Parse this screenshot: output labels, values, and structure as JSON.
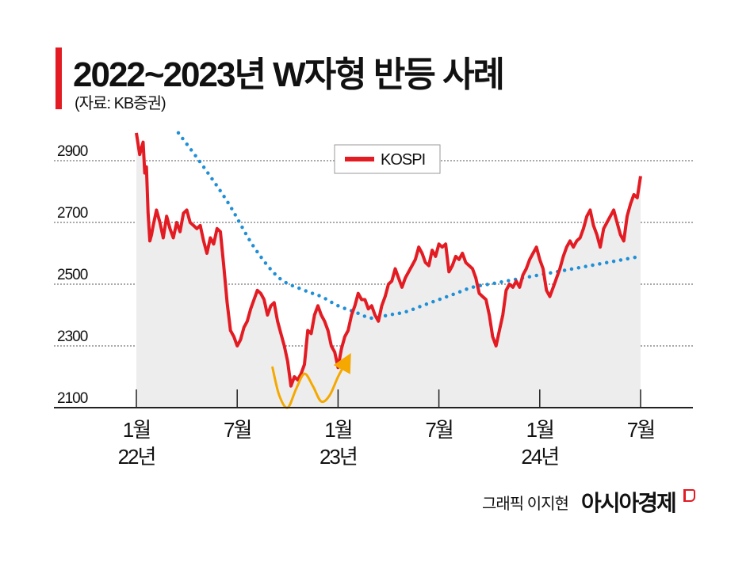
{
  "header": {
    "title": "2022~2023년 W자형 반등 사례",
    "source": "(자료: KB증권)"
  },
  "footer": {
    "credit": "그래픽 이지현",
    "brand": "아시아경제"
  },
  "colors": {
    "accent": "#e31b23",
    "kospi_line": "#e31b23",
    "dotted_trend": "#1f8fd6",
    "w_pattern": "#f5a800",
    "area_fill": "#ededed",
    "grid": "#555555"
  },
  "chart_data": {
    "type": "line",
    "title": "2022~2023년 W자형 반등 사례",
    "legend": {
      "labels": [
        "KOSPI"
      ],
      "placement": "top-center"
    },
    "y_ticks": [
      "2900",
      "2700",
      "2500",
      "2300",
      "2100"
    ],
    "ylim": [
      2100,
      2900
    ],
    "grid": true,
    "x_ticks": [
      {
        "month": "1월",
        "year": "22년",
        "t": 0
      },
      {
        "month": "7월",
        "year": "",
        "t": 6
      },
      {
        "month": "1월",
        "year": "23년",
        "t": 12
      },
      {
        "month": "7월",
        "year": "",
        "t": 18
      },
      {
        "month": "1월",
        "year": "24년",
        "t": 24
      },
      {
        "month": "7월",
        "year": "",
        "t": 30
      }
    ],
    "x_unit": "months since January 2022",
    "series": [
      {
        "name": "KOSPI",
        "style": "solid-area",
        "values": [
          [
            0.0,
            2990
          ],
          [
            0.2,
            2920
          ],
          [
            0.4,
            2960
          ],
          [
            0.5,
            2860
          ],
          [
            0.6,
            2880
          ],
          [
            0.7,
            2730
          ],
          [
            0.8,
            2640
          ],
          [
            0.9,
            2660
          ],
          [
            1.0,
            2690
          ],
          [
            1.2,
            2740
          ],
          [
            1.4,
            2700
          ],
          [
            1.6,
            2650
          ],
          [
            1.8,
            2720
          ],
          [
            2.0,
            2680
          ],
          [
            2.2,
            2650
          ],
          [
            2.4,
            2700
          ],
          [
            2.6,
            2670
          ],
          [
            2.8,
            2730
          ],
          [
            3.0,
            2740
          ],
          [
            3.2,
            2700
          ],
          [
            3.4,
            2690
          ],
          [
            3.6,
            2680
          ],
          [
            3.8,
            2690
          ],
          [
            4.0,
            2640
          ],
          [
            4.2,
            2600
          ],
          [
            4.4,
            2650
          ],
          [
            4.6,
            2630
          ],
          [
            4.8,
            2680
          ],
          [
            5.0,
            2670
          ],
          [
            5.2,
            2560
          ],
          [
            5.4,
            2440
          ],
          [
            5.6,
            2350
          ],
          [
            5.8,
            2330
          ],
          [
            6.0,
            2300
          ],
          [
            6.2,
            2320
          ],
          [
            6.4,
            2360
          ],
          [
            6.6,
            2380
          ],
          [
            6.8,
            2420
          ],
          [
            7.0,
            2450
          ],
          [
            7.2,
            2480
          ],
          [
            7.4,
            2470
          ],
          [
            7.6,
            2450
          ],
          [
            7.8,
            2400
          ],
          [
            8.0,
            2430
          ],
          [
            8.2,
            2440
          ],
          [
            8.4,
            2380
          ],
          [
            8.6,
            2340
          ],
          [
            8.8,
            2300
          ],
          [
            9.0,
            2250
          ],
          [
            9.2,
            2170
          ],
          [
            9.4,
            2200
          ],
          [
            9.6,
            2190
          ],
          [
            9.8,
            2210
          ],
          [
            10.0,
            2240
          ],
          [
            10.2,
            2350
          ],
          [
            10.4,
            2340
          ],
          [
            10.6,
            2400
          ],
          [
            10.8,
            2430
          ],
          [
            11.0,
            2400
          ],
          [
            11.2,
            2380
          ],
          [
            11.4,
            2350
          ],
          [
            11.6,
            2300
          ],
          [
            11.8,
            2280
          ],
          [
            12.0,
            2230
          ],
          [
            12.2,
            2290
          ],
          [
            12.4,
            2330
          ],
          [
            12.6,
            2350
          ],
          [
            12.8,
            2400
          ],
          [
            13.0,
            2430
          ],
          [
            13.2,
            2470
          ],
          [
            13.4,
            2450
          ],
          [
            13.6,
            2450
          ],
          [
            13.8,
            2420
          ],
          [
            14.0,
            2430
          ],
          [
            14.2,
            2400
          ],
          [
            14.4,
            2380
          ],
          [
            14.6,
            2430
          ],
          [
            14.8,
            2460
          ],
          [
            15.0,
            2500
          ],
          [
            15.2,
            2510
          ],
          [
            15.4,
            2550
          ],
          [
            15.6,
            2520
          ],
          [
            15.8,
            2490
          ],
          [
            16.0,
            2520
          ],
          [
            16.2,
            2540
          ],
          [
            16.4,
            2560
          ],
          [
            16.6,
            2580
          ],
          [
            16.8,
            2620
          ],
          [
            17.0,
            2600
          ],
          [
            17.2,
            2570
          ],
          [
            17.4,
            2560
          ],
          [
            17.6,
            2610
          ],
          [
            17.8,
            2590
          ],
          [
            18.0,
            2630
          ],
          [
            18.2,
            2620
          ],
          [
            18.4,
            2630
          ],
          [
            18.6,
            2540
          ],
          [
            18.8,
            2560
          ],
          [
            19.0,
            2590
          ],
          [
            19.2,
            2580
          ],
          [
            19.4,
            2600
          ],
          [
            19.6,
            2570
          ],
          [
            19.8,
            2560
          ],
          [
            20.0,
            2550
          ],
          [
            20.2,
            2520
          ],
          [
            20.4,
            2470
          ],
          [
            20.6,
            2460
          ],
          [
            20.8,
            2450
          ],
          [
            21.0,
            2400
          ],
          [
            21.2,
            2330
          ],
          [
            21.4,
            2300
          ],
          [
            21.6,
            2350
          ],
          [
            21.8,
            2400
          ],
          [
            22.0,
            2480
          ],
          [
            22.2,
            2500
          ],
          [
            22.4,
            2490
          ],
          [
            22.6,
            2510
          ],
          [
            22.8,
            2490
          ],
          [
            23.0,
            2530
          ],
          [
            23.2,
            2550
          ],
          [
            23.4,
            2580
          ],
          [
            23.6,
            2600
          ],
          [
            23.8,
            2620
          ],
          [
            24.0,
            2580
          ],
          [
            24.2,
            2550
          ],
          [
            24.4,
            2480
          ],
          [
            24.6,
            2460
          ],
          [
            24.8,
            2490
          ],
          [
            25.0,
            2520
          ],
          [
            25.2,
            2550
          ],
          [
            25.4,
            2590
          ],
          [
            25.6,
            2620
          ],
          [
            25.8,
            2640
          ],
          [
            26.0,
            2620
          ],
          [
            26.2,
            2640
          ],
          [
            26.4,
            2650
          ],
          [
            26.6,
            2680
          ],
          [
            26.8,
            2720
          ],
          [
            27.0,
            2740
          ],
          [
            27.2,
            2690
          ],
          [
            27.4,
            2660
          ],
          [
            27.6,
            2620
          ],
          [
            27.8,
            2680
          ],
          [
            28.0,
            2700
          ],
          [
            28.2,
            2720
          ],
          [
            28.4,
            2740
          ],
          [
            28.6,
            2700
          ],
          [
            28.8,
            2660
          ],
          [
            29.0,
            2640
          ],
          [
            29.2,
            2720
          ],
          [
            29.4,
            2760
          ],
          [
            29.6,
            2790
          ],
          [
            29.8,
            2780
          ],
          [
            30.0,
            2850
          ]
        ]
      },
      {
        "name": "",
        "style": "dotted-trend",
        "values": [
          [
            2.5,
            2990
          ],
          [
            4.0,
            2880
          ],
          [
            5.5,
            2760
          ],
          [
            7.0,
            2620
          ],
          [
            8.5,
            2520
          ],
          [
            10.0,
            2480
          ],
          [
            11.0,
            2460
          ],
          [
            12.0,
            2430
          ],
          [
            13.0,
            2410
          ],
          [
            14.0,
            2390
          ],
          [
            15.0,
            2400
          ],
          [
            16.0,
            2410
          ],
          [
            17.0,
            2430
          ],
          [
            18.0,
            2450
          ],
          [
            19.0,
            2470
          ],
          [
            20.0,
            2490
          ],
          [
            21.0,
            2500
          ],
          [
            22.0,
            2510
          ],
          [
            23.0,
            2520
          ],
          [
            24.0,
            2530
          ],
          [
            25.0,
            2540
          ],
          [
            26.0,
            2550
          ],
          [
            27.0,
            2560
          ],
          [
            28.0,
            2570
          ],
          [
            29.0,
            2580
          ],
          [
            30.0,
            2590
          ]
        ]
      },
      {
        "name": "",
        "style": "w-pattern-arrow",
        "values": [
          [
            8.1,
            2230
          ],
          [
            8.5,
            2140
          ],
          [
            9.0,
            2100
          ],
          [
            9.5,
            2160
          ],
          [
            10.0,
            2210
          ],
          [
            10.5,
            2170
          ],
          [
            11.0,
            2120
          ],
          [
            11.5,
            2140
          ],
          [
            12.0,
            2200
          ],
          [
            12.5,
            2250
          ]
        ]
      }
    ]
  }
}
